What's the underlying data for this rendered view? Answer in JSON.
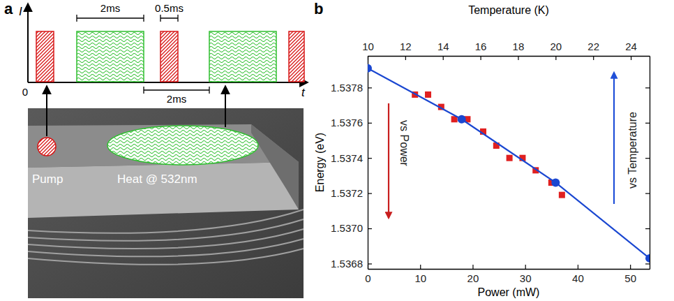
{
  "chart_data": {
    "type": "scatter",
    "panel_label": "b",
    "x_label": "Power (mW)",
    "x2_label": "Temperature (K)",
    "y_label": "Energy (eV)",
    "xlim": [
      0,
      53.7
    ],
    "xticks": [
      0,
      10,
      20,
      30,
      40,
      50
    ],
    "x2lim": [
      10,
      25
    ],
    "x2ticks": [
      10,
      12,
      14,
      16,
      18,
      20,
      22,
      24
    ],
    "ylim": [
      1.53677,
      1.53798
    ],
    "yticks": [
      1.5368,
      {
        "value": 1.537,
        "label": "1.5370"
      },
      1.5372,
      1.5374,
      1.5376,
      1.5378
    ],
    "series": [
      {
        "type": "scatter",
        "marker": "square",
        "color": "#e02020",
        "x": [
          9,
          11.5,
          14,
          16.5,
          19,
          22,
          24.5,
          27,
          29.5,
          32,
          35,
          37
        ],
        "values": [
          1.53776,
          1.53776,
          1.53769,
          1.53762,
          1.53762,
          1.53755,
          1.53747,
          1.5374,
          1.5374,
          1.53733,
          1.53726,
          1.53719
        ]
      },
      {
        "type": "line",
        "marker": "circle",
        "color": "#1a47d1",
        "axis": "x2",
        "x": [
          10,
          15,
          20,
          25
        ],
        "values": [
          1.53791,
          1.53762,
          1.53726,
          1.53683
        ]
      }
    ],
    "annotations": [
      {
        "text": "vs Power",
        "color": "#c81e1e"
      },
      {
        "text": "vs Temperature",
        "color": "#1f4fd8"
      }
    ]
  },
  "diagram": {
    "panel_label": "a",
    "y_axis": "I",
    "x_axis": "t",
    "origin": "0",
    "heat_width": "2ms",
    "pump_width": "0.5ms",
    "spacing": "2ms",
    "pump": "Pump",
    "heat": "Heat @ 532nm"
  }
}
